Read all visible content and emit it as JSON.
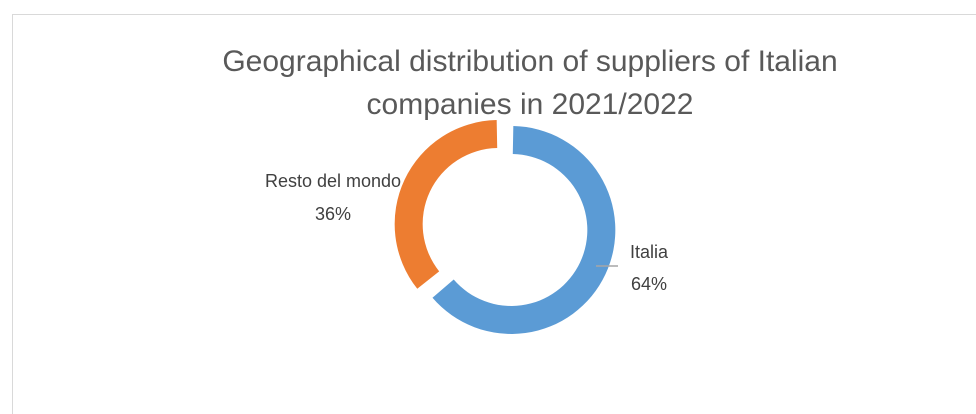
{
  "chart_data": {
    "type": "pie",
    "variant": "donut",
    "title_line1": "Geographical distribution of suppliers of Italian",
    "title_line2": "companies in 2021/2022",
    "slices": [
      {
        "name": "Italia",
        "value": 64,
        "percent_label": "64%",
        "color": "#5b9bd5"
      },
      {
        "name": "Resto del mondo",
        "value": 36,
        "percent_label": "36%",
        "color": "#ed7d31"
      }
    ],
    "legend": "none",
    "data_labels": "outside with leader line"
  }
}
